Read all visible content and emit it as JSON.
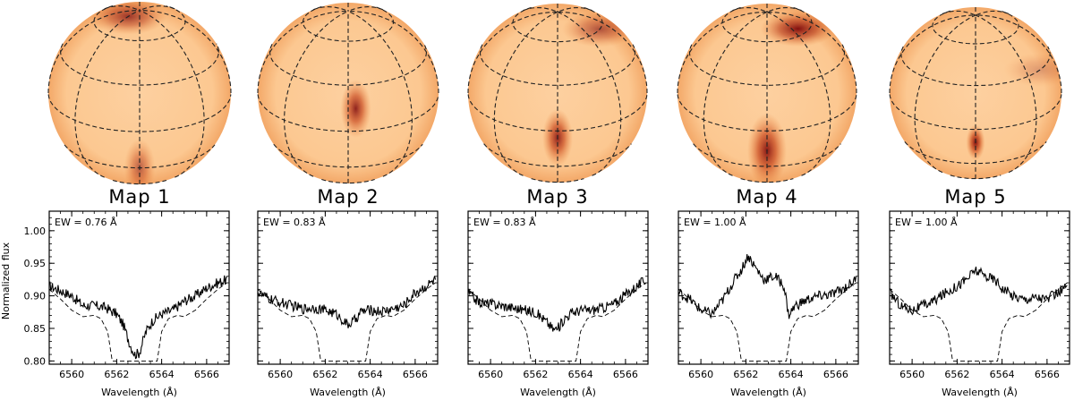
{
  "figure": {
    "ylabel": "Normalized flux",
    "xlabel": "Wavelength (Å)"
  },
  "maps": [
    {
      "title": "Map 1",
      "ew": "EW = 0.76 Å",
      "spot": {
        "lon": 0,
        "lat": -30,
        "size": "medium",
        "intensity": 0.55
      },
      "polar": {
        "lon": -45,
        "lat": 80,
        "intensity": 0.75
      }
    },
    {
      "title": "Map 2",
      "ew": "EW = 0.83 Å",
      "spot": {
        "lon": 5,
        "lat": 15,
        "size": "medium",
        "intensity": 0.85
      },
      "polar": null
    },
    {
      "title": "Map 3",
      "ew": "EW = 0.83 Å",
      "spot": {
        "lon": 0,
        "lat": -5,
        "size": "medium",
        "intensity": 0.85
      },
      "polar": {
        "lon": 70,
        "lat": 60,
        "intensity": 0.6
      }
    },
    {
      "title": "Map 4",
      "ew": "EW = 1.00 Å",
      "spot": {
        "lon": 0,
        "lat": -15,
        "size": "large",
        "intensity": 0.9
      },
      "polar": {
        "lon": 55,
        "lat": 65,
        "intensity": 0.95
      }
    },
    {
      "title": "Map 5",
      "ew": "EW = 1.00 Å",
      "spot": {
        "lon": 0,
        "lat": -10,
        "size": "small",
        "intensity": 0.95
      },
      "polar": {
        "lon": 60,
        "lat": 30,
        "intensity": 0.25
      }
    }
  ],
  "colors": {
    "photosphere": "#fcc891",
    "spot_dark": "#7a0508",
    "line": "#000000",
    "grid": "#222222"
  },
  "chart_data": {
    "type": "line",
    "xlabel": "Wavelength (Å)",
    "ylabel": "Normalized flux",
    "xlim": [
      6559,
      6567
    ],
    "ylim": [
      0.795,
      1.03
    ],
    "xticks": [
      6560,
      6562,
      6564,
      6566
    ],
    "yticks": [
      "0.80",
      "0.85",
      "0.90",
      "0.95",
      "1.00"
    ],
    "series": [
      {
        "name": "Map 1 observed",
        "style": "solid",
        "x": [
          6559.0,
          6559.5,
          6560.0,
          6560.5,
          6561.0,
          6561.5,
          6562.0,
          6562.3,
          6562.6,
          6562.8,
          6563.0,
          6563.3,
          6563.6,
          6564.0,
          6564.5,
          6565.0,
          6565.5,
          6566.0,
          6566.5,
          6566.9
        ],
        "y": [
          0.915,
          0.908,
          0.9,
          0.885,
          0.885,
          0.882,
          0.872,
          0.855,
          0.825,
          0.81,
          0.812,
          0.845,
          0.862,
          0.872,
          0.878,
          0.892,
          0.9,
          0.912,
          0.92,
          0.925
        ]
      },
      {
        "name": "Map 1 model",
        "style": "dashed",
        "x": [
          6559.0,
          6559.5,
          6560.0,
          6560.5,
          6561.0,
          6561.3,
          6561.6,
          6561.8,
          6563.8,
          6564.0,
          6564.3,
          6564.7,
          6565.0,
          6565.5,
          6566.0,
          6566.5,
          6566.9
        ],
        "y": [
          0.91,
          0.895,
          0.878,
          0.868,
          0.87,
          0.865,
          0.845,
          0.8,
          0.8,
          0.845,
          0.865,
          0.87,
          0.868,
          0.878,
          0.895,
          0.91,
          0.92
        ]
      },
      {
        "name": "Map 2 observed",
        "style": "solid",
        "x": [
          6559.0,
          6559.5,
          6560.0,
          6560.5,
          6561.0,
          6561.5,
          6562.0,
          6562.5,
          6562.8,
          6563.0,
          6563.3,
          6563.6,
          6564.0,
          6564.5,
          6565.0,
          6565.5,
          6566.0,
          6566.5,
          6566.9
        ],
        "y": [
          0.905,
          0.895,
          0.89,
          0.885,
          0.88,
          0.882,
          0.878,
          0.872,
          0.862,
          0.855,
          0.862,
          0.876,
          0.878,
          0.876,
          0.88,
          0.885,
          0.905,
          0.915,
          0.925
        ]
      },
      {
        "name": "Map 2 model",
        "style": "dashed",
        "x": [
          6559.0,
          6559.5,
          6560.0,
          6560.5,
          6561.0,
          6561.3,
          6561.6,
          6561.8,
          6563.8,
          6564.0,
          6564.3,
          6564.7,
          6565.0,
          6565.5,
          6566.0,
          6566.5,
          6566.9
        ],
        "y": [
          0.91,
          0.895,
          0.878,
          0.868,
          0.87,
          0.865,
          0.845,
          0.8,
          0.8,
          0.845,
          0.865,
          0.87,
          0.868,
          0.878,
          0.895,
          0.91,
          0.92
        ]
      },
      {
        "name": "Map 3 observed",
        "style": "solid",
        "x": [
          6559.0,
          6559.5,
          6560.0,
          6560.5,
          6561.0,
          6561.5,
          6562.0,
          6562.5,
          6562.8,
          6563.0,
          6563.3,
          6563.6,
          6564.0,
          6564.5,
          6565.0,
          6565.5,
          6566.0,
          6566.5,
          6566.9
        ],
        "y": [
          0.905,
          0.89,
          0.888,
          0.885,
          0.882,
          0.878,
          0.875,
          0.86,
          0.848,
          0.85,
          0.866,
          0.874,
          0.878,
          0.878,
          0.882,
          0.888,
          0.902,
          0.915,
          0.925
        ]
      },
      {
        "name": "Map 3 model",
        "style": "dashed",
        "x": [
          6559.0,
          6559.5,
          6560.0,
          6560.5,
          6561.0,
          6561.3,
          6561.6,
          6561.8,
          6563.8,
          6564.0,
          6564.3,
          6564.7,
          6565.0,
          6565.5,
          6566.0,
          6566.5,
          6566.9
        ],
        "y": [
          0.91,
          0.895,
          0.878,
          0.868,
          0.87,
          0.865,
          0.845,
          0.8,
          0.8,
          0.845,
          0.865,
          0.87,
          0.868,
          0.878,
          0.895,
          0.91,
          0.92
        ]
      },
      {
        "name": "Map 4 observed",
        "style": "solid",
        "x": [
          6559.0,
          6559.5,
          6560.0,
          6560.5,
          6561.0,
          6561.5,
          6561.8,
          6562.1,
          6562.4,
          6562.8,
          6563.3,
          6563.7,
          6563.9,
          6564.2,
          6564.8,
          6565.3,
          6565.8,
          6566.3,
          6566.9
        ],
        "y": [
          0.905,
          0.895,
          0.878,
          0.872,
          0.895,
          0.925,
          0.94,
          0.962,
          0.945,
          0.925,
          0.93,
          0.915,
          0.87,
          0.885,
          0.895,
          0.9,
          0.902,
          0.91,
          0.925
        ]
      },
      {
        "name": "Map 4 model",
        "style": "dashed",
        "x": [
          6559.0,
          6559.5,
          6560.0,
          6560.5,
          6561.0,
          6561.3,
          6561.6,
          6561.8,
          6563.8,
          6564.0,
          6564.3,
          6564.7,
          6565.0,
          6565.5,
          6566.0,
          6566.5,
          6566.9
        ],
        "y": [
          0.91,
          0.895,
          0.878,
          0.868,
          0.87,
          0.865,
          0.845,
          0.8,
          0.8,
          0.845,
          0.865,
          0.87,
          0.868,
          0.878,
          0.895,
          0.91,
          0.92
        ]
      },
      {
        "name": "Map 5 observed",
        "style": "solid",
        "x": [
          6559.0,
          6559.5,
          6560.0,
          6560.5,
          6561.0,
          6561.5,
          6562.0,
          6562.5,
          6562.8,
          6563.0,
          6563.3,
          6563.7,
          6564.0,
          6564.5,
          6565.0,
          6565.5,
          6566.0,
          6566.5,
          6566.9
        ],
        "y": [
          0.905,
          0.885,
          0.878,
          0.885,
          0.893,
          0.905,
          0.915,
          0.928,
          0.94,
          0.935,
          0.93,
          0.925,
          0.912,
          0.9,
          0.895,
          0.898,
          0.895,
          0.905,
          0.915
        ]
      },
      {
        "name": "Map 5 model",
        "style": "dashed",
        "x": [
          6559.0,
          6559.5,
          6560.0,
          6560.5,
          6561.0,
          6561.3,
          6561.6,
          6561.8,
          6563.8,
          6564.0,
          6564.3,
          6564.7,
          6565.0,
          6565.5,
          6566.0,
          6566.5,
          6566.9
        ],
        "y": [
          0.91,
          0.895,
          0.878,
          0.868,
          0.87,
          0.865,
          0.845,
          0.8,
          0.8,
          0.845,
          0.865,
          0.87,
          0.868,
          0.878,
          0.895,
          0.91,
          0.92
        ]
      }
    ]
  }
}
